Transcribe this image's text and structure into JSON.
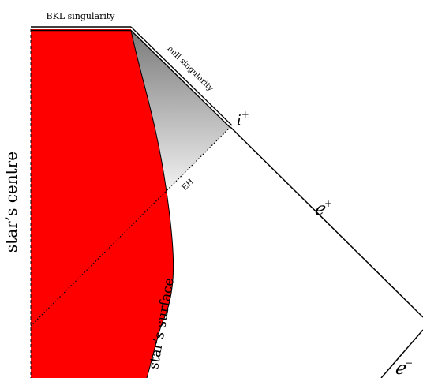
{
  "diagram": {
    "labels": {
      "bkl_singularity": "BKL singularity",
      "null_singularity": "null singularity",
      "i_plus": "i",
      "i_plus_sup": "+",
      "scri_plus": "ℯ",
      "scri_plus_sup": "+",
      "scri_minus": "ℯ",
      "scri_minus_sup": "−",
      "event_horizon": "EH",
      "stars_centre": "star’s centre",
      "stars_surface": "star’s surface"
    },
    "colors": {
      "star_fill": "#ff0000",
      "gradient_top": "#7a7a7a",
      "gradient_bottom": "#f2f2f2",
      "line": "#000000"
    }
  }
}
